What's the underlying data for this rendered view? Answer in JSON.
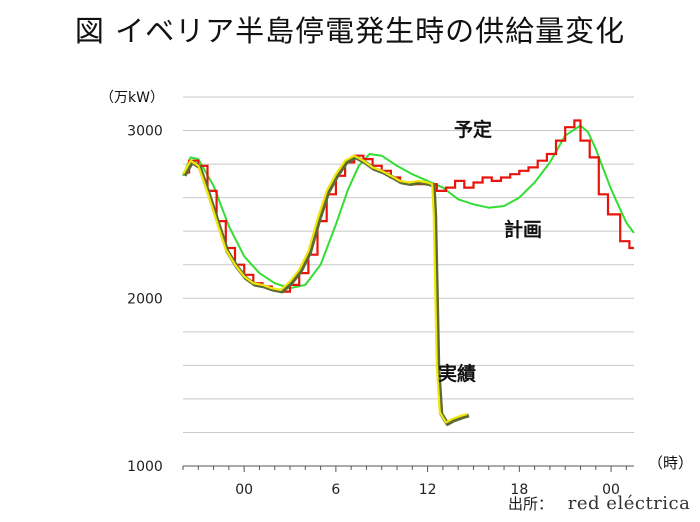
{
  "title": "図 イベリア半島停電発生時の供給量変化",
  "y_unit": "（万kW）",
  "x_unit": "（時）",
  "source": {
    "label": "出所：",
    "brand": "red eléctrica"
  },
  "annotations": {
    "planned": "予定",
    "forecast": "計画",
    "actual": "実績"
  },
  "colors": {
    "planned": "#e8140c",
    "forecast": "#33dd33",
    "actual": "#f0e60a",
    "actual_shadow": "#5c6b35",
    "grid": "#c8c8c8"
  },
  "chart_data": {
    "type": "line",
    "x_tick_labels": [
      "00",
      "6",
      "12",
      "18",
      "00"
    ],
    "x_ticks_hours": [
      24,
      30,
      36,
      42,
      48
    ],
    "y_tick_labels": [
      "1000",
      "2000",
      "3000"
    ],
    "y_ticks": [
      1000,
      2000,
      3000
    ],
    "xlim": [
      20,
      49.5
    ],
    "ylim": [
      1000,
      3200
    ],
    "grid": true,
    "series": [
      {
        "key": "forecast",
        "step": false,
        "points": [
          [
            20,
            2730
          ],
          [
            20.5,
            2840
          ],
          [
            21,
            2830
          ],
          [
            22,
            2670
          ],
          [
            23,
            2430
          ],
          [
            24,
            2250
          ],
          [
            25,
            2150
          ],
          [
            26,
            2090
          ],
          [
            27,
            2060
          ],
          [
            28,
            2080
          ],
          [
            29,
            2200
          ],
          [
            30,
            2440
          ],
          [
            30.8,
            2650
          ],
          [
            31.5,
            2790
          ],
          [
            32.2,
            2860
          ],
          [
            33,
            2850
          ],
          [
            34,
            2790
          ],
          [
            35,
            2740
          ],
          [
            36,
            2700
          ],
          [
            37,
            2660
          ],
          [
            38,
            2590
          ],
          [
            39,
            2560
          ],
          [
            40,
            2540
          ],
          [
            41,
            2550
          ],
          [
            42,
            2600
          ],
          [
            43,
            2690
          ],
          [
            44,
            2810
          ],
          [
            45,
            2970
          ],
          [
            46,
            3030
          ],
          [
            46.5,
            2990
          ],
          [
            47,
            2890
          ],
          [
            48,
            2650
          ],
          [
            49,
            2450
          ],
          [
            49.5,
            2390
          ]
        ]
      },
      {
        "key": "planned",
        "step": true,
        "points": [
          [
            20,
            2750
          ],
          [
            20.4,
            2820
          ],
          [
            21,
            2790
          ],
          [
            21.6,
            2640
          ],
          [
            22.2,
            2460
          ],
          [
            22.8,
            2300
          ],
          [
            23.4,
            2200
          ],
          [
            24,
            2140
          ],
          [
            24.6,
            2090
          ],
          [
            25.2,
            2070
          ],
          [
            25.8,
            2050
          ],
          [
            26.4,
            2040
          ],
          [
            27,
            2080
          ],
          [
            27.6,
            2150
          ],
          [
            28.2,
            2260
          ],
          [
            28.8,
            2460
          ],
          [
            29.4,
            2620
          ],
          [
            30,
            2730
          ],
          [
            30.6,
            2810
          ],
          [
            31.2,
            2850
          ],
          [
            31.8,
            2830
          ],
          [
            32.4,
            2790
          ],
          [
            33,
            2760
          ],
          [
            33.6,
            2720
          ],
          [
            34.2,
            2690
          ],
          [
            34.8,
            2680
          ],
          [
            35.4,
            2680
          ],
          [
            36,
            2680
          ],
          [
            36.6,
            2640
          ],
          [
            37.2,
            2660
          ],
          [
            37.8,
            2700
          ],
          [
            38.4,
            2660
          ],
          [
            39,
            2690
          ],
          [
            39.6,
            2720
          ],
          [
            40.2,
            2700
          ],
          [
            40.8,
            2720
          ],
          [
            41.4,
            2740
          ],
          [
            42,
            2760
          ],
          [
            42.6,
            2780
          ],
          [
            43.2,
            2820
          ],
          [
            43.8,
            2860
          ],
          [
            44.4,
            2940
          ],
          [
            45,
            3020
          ],
          [
            45.6,
            3060
          ],
          [
            46,
            2940
          ],
          [
            46.6,
            2840
          ],
          [
            47.2,
            2620
          ],
          [
            47.8,
            2500
          ],
          [
            48.6,
            2340
          ],
          [
            49.2,
            2300
          ],
          [
            49.5,
            2300
          ]
        ]
      },
      {
        "key": "actual",
        "step": false,
        "points": [
          [
            20,
            2740
          ],
          [
            20.5,
            2820
          ],
          [
            21,
            2790
          ],
          [
            21.6,
            2630
          ],
          [
            22.2,
            2460
          ],
          [
            22.8,
            2290
          ],
          [
            23.4,
            2200
          ],
          [
            24,
            2130
          ],
          [
            24.6,
            2090
          ],
          [
            25.2,
            2080
          ],
          [
            25.8,
            2060
          ],
          [
            26.4,
            2050
          ],
          [
            27,
            2100
          ],
          [
            27.6,
            2170
          ],
          [
            28.2,
            2280
          ],
          [
            28.8,
            2470
          ],
          [
            29.4,
            2640
          ],
          [
            30,
            2740
          ],
          [
            30.6,
            2820
          ],
          [
            31.2,
            2850
          ],
          [
            31.8,
            2820
          ],
          [
            32.4,
            2780
          ],
          [
            33,
            2760
          ],
          [
            33.6,
            2730
          ],
          [
            34.2,
            2700
          ],
          [
            34.8,
            2690
          ],
          [
            35.4,
            2700
          ],
          [
            36,
            2690
          ],
          [
            36.3,
            2680
          ],
          [
            36.4,
            2500
          ],
          [
            36.6,
            1600
          ],
          [
            36.8,
            1320
          ],
          [
            37.2,
            1260
          ],
          [
            37.6,
            1280
          ],
          [
            38.2,
            1300
          ],
          [
            38.6,
            1310
          ]
        ]
      }
    ]
  }
}
